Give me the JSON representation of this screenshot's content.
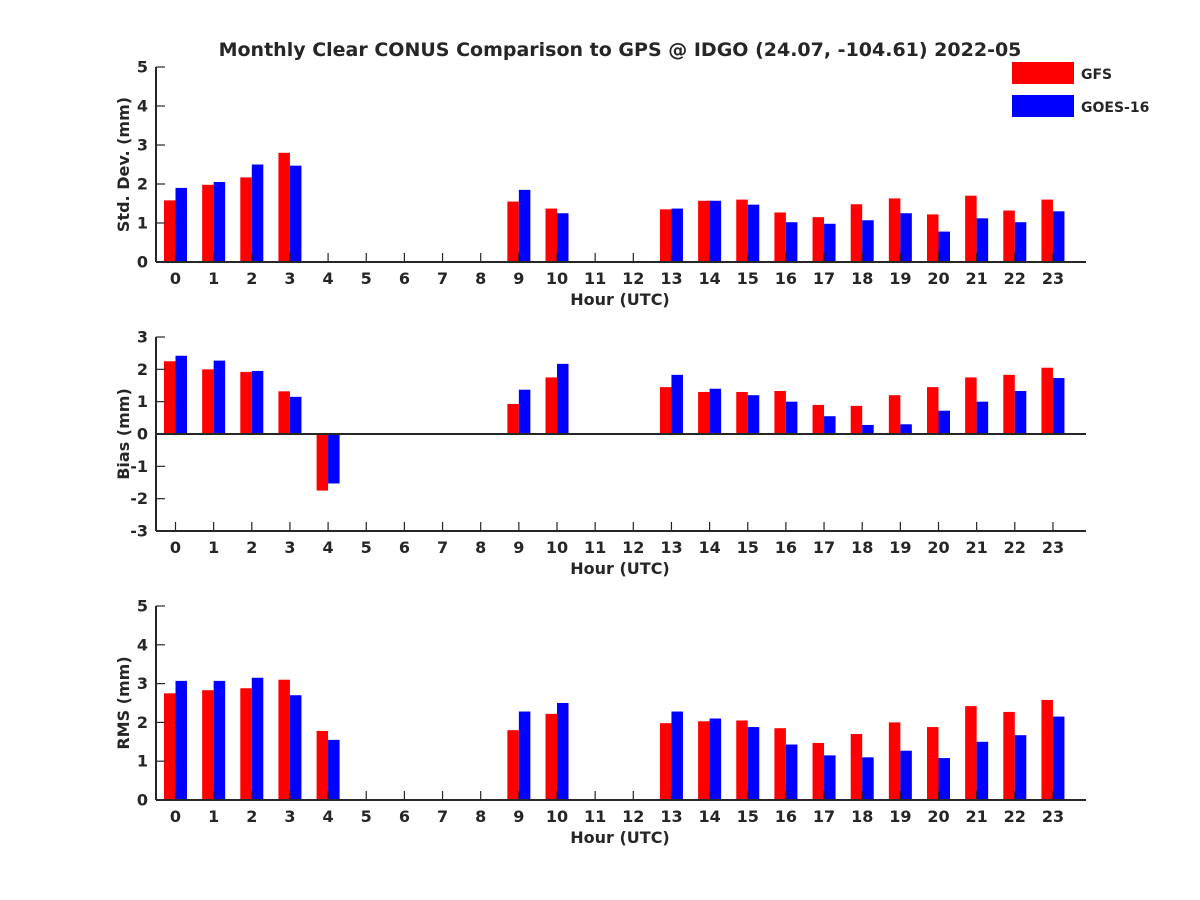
{
  "title": "Monthly Clear CONUS Comparison to GPS @ IDGO (24.07, -104.61) 2022-05",
  "legend": {
    "placement": "top-right",
    "entries": [
      {
        "label": "GFS",
        "color": "#ff0000"
      },
      {
        "label": "GOES-16",
        "color": "#0000ff"
      }
    ]
  },
  "colors": {
    "GFS": "#ff0000",
    "GOES-16": "#0000ff",
    "axis": "#262626"
  },
  "chart_data": [
    {
      "type": "bar",
      "ylabel": "Std. Dev. (mm)",
      "xlabel": "Hour (UTC)",
      "ylim": [
        0,
        5
      ],
      "yticks": [
        0,
        1,
        2,
        3,
        4,
        5
      ],
      "categories": [
        "0",
        "1",
        "2",
        "3",
        "4",
        "5",
        "6",
        "7",
        "8",
        "9",
        "10",
        "11",
        "12",
        "13",
        "14",
        "15",
        "16",
        "17",
        "18",
        "19",
        "20",
        "21",
        "22",
        "23"
      ],
      "series": [
        {
          "name": "GFS",
          "values": [
            1.58,
            1.98,
            2.17,
            2.8,
            null,
            null,
            null,
            null,
            null,
            1.55,
            1.37,
            null,
            null,
            1.35,
            1.57,
            1.6,
            1.27,
            1.15,
            1.48,
            1.63,
            1.22,
            1.7,
            1.32,
            1.6
          ]
        },
        {
          "name": "GOES-16",
          "values": [
            1.9,
            2.05,
            2.5,
            2.47,
            null,
            null,
            null,
            null,
            null,
            1.85,
            1.25,
            null,
            null,
            1.37,
            1.57,
            1.47,
            1.02,
            0.98,
            1.07,
            1.25,
            0.78,
            1.12,
            1.02,
            1.3
          ]
        }
      ]
    },
    {
      "type": "bar",
      "ylabel": "Bias (mm)",
      "xlabel": "Hour (UTC)",
      "ylim": [
        -3,
        3
      ],
      "yticks": [
        -3,
        -2,
        -1,
        0,
        1,
        2,
        3
      ],
      "categories": [
        "0",
        "1",
        "2",
        "3",
        "4",
        "5",
        "6",
        "7",
        "8",
        "9",
        "10",
        "11",
        "12",
        "13",
        "14",
        "15",
        "16",
        "17",
        "18",
        "19",
        "20",
        "21",
        "22",
        "23"
      ],
      "series": [
        {
          "name": "GFS",
          "values": [
            2.25,
            2.0,
            1.92,
            1.32,
            -1.75,
            null,
            null,
            null,
            null,
            0.93,
            1.75,
            null,
            null,
            1.45,
            1.3,
            1.3,
            1.33,
            0.9,
            0.87,
            1.2,
            1.45,
            1.75,
            1.83,
            2.05
          ]
        },
        {
          "name": "GOES-16",
          "values": [
            2.42,
            2.27,
            1.95,
            1.15,
            -1.53,
            null,
            null,
            null,
            null,
            1.37,
            2.17,
            null,
            null,
            1.83,
            1.4,
            1.2,
            1.0,
            0.55,
            0.28,
            0.3,
            0.72,
            1.0,
            1.33,
            1.73
          ]
        }
      ]
    },
    {
      "type": "bar",
      "ylabel": "RMS (mm)",
      "xlabel": "Hour (UTC)",
      "ylim": [
        0,
        5
      ],
      "yticks": [
        0,
        1,
        2,
        3,
        4,
        5
      ],
      "categories": [
        "0",
        "1",
        "2",
        "3",
        "4",
        "5",
        "6",
        "7",
        "8",
        "9",
        "10",
        "11",
        "12",
        "13",
        "14",
        "15",
        "16",
        "17",
        "18",
        "19",
        "20",
        "21",
        "22",
        "23"
      ],
      "series": [
        {
          "name": "GFS",
          "values": [
            2.75,
            2.83,
            2.88,
            3.1,
            1.78,
            null,
            null,
            null,
            null,
            1.8,
            2.22,
            null,
            null,
            1.98,
            2.03,
            2.05,
            1.85,
            1.47,
            1.7,
            2.0,
            1.88,
            2.42,
            2.27,
            2.58
          ]
        },
        {
          "name": "GOES-16",
          "values": [
            3.07,
            3.07,
            3.15,
            2.7,
            1.55,
            null,
            null,
            null,
            null,
            2.28,
            2.5,
            null,
            null,
            2.28,
            2.1,
            1.88,
            1.43,
            1.15,
            1.1,
            1.27,
            1.08,
            1.5,
            1.67,
            2.15
          ]
        }
      ]
    }
  ]
}
